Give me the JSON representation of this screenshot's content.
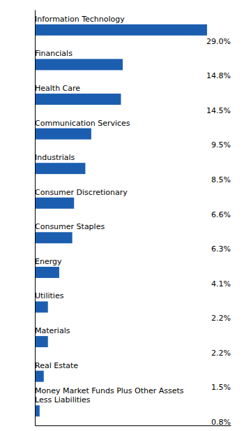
{
  "chart_data": {
    "type": "bar",
    "orientation": "horizontal",
    "categories": [
      "Information Technology",
      "Financials",
      "Health Care",
      "Communication Services",
      "Industrials",
      "Consumer Discretionary",
      "Consumer Staples",
      "Energy",
      "Utilities",
      "Materials",
      "Real Estate",
      "Money Market Funds Plus Other Assets\nLess Liabilities"
    ],
    "values": [
      29.0,
      14.8,
      14.5,
      9.5,
      8.5,
      6.6,
      6.3,
      4.1,
      2.2,
      2.2,
      1.5,
      0.8
    ],
    "value_labels": [
      "29.0%",
      "14.8%",
      "14.5%",
      "9.5%",
      "8.5%",
      "6.6%",
      "6.3%",
      "4.1%",
      "2.2%",
      "2.2%",
      "1.5%",
      "0.8%"
    ],
    "color": "#1B5EAF",
    "xlim": [
      0,
      33
    ],
    "data_labels": true,
    "tick_labels": false,
    "grid": false
  }
}
